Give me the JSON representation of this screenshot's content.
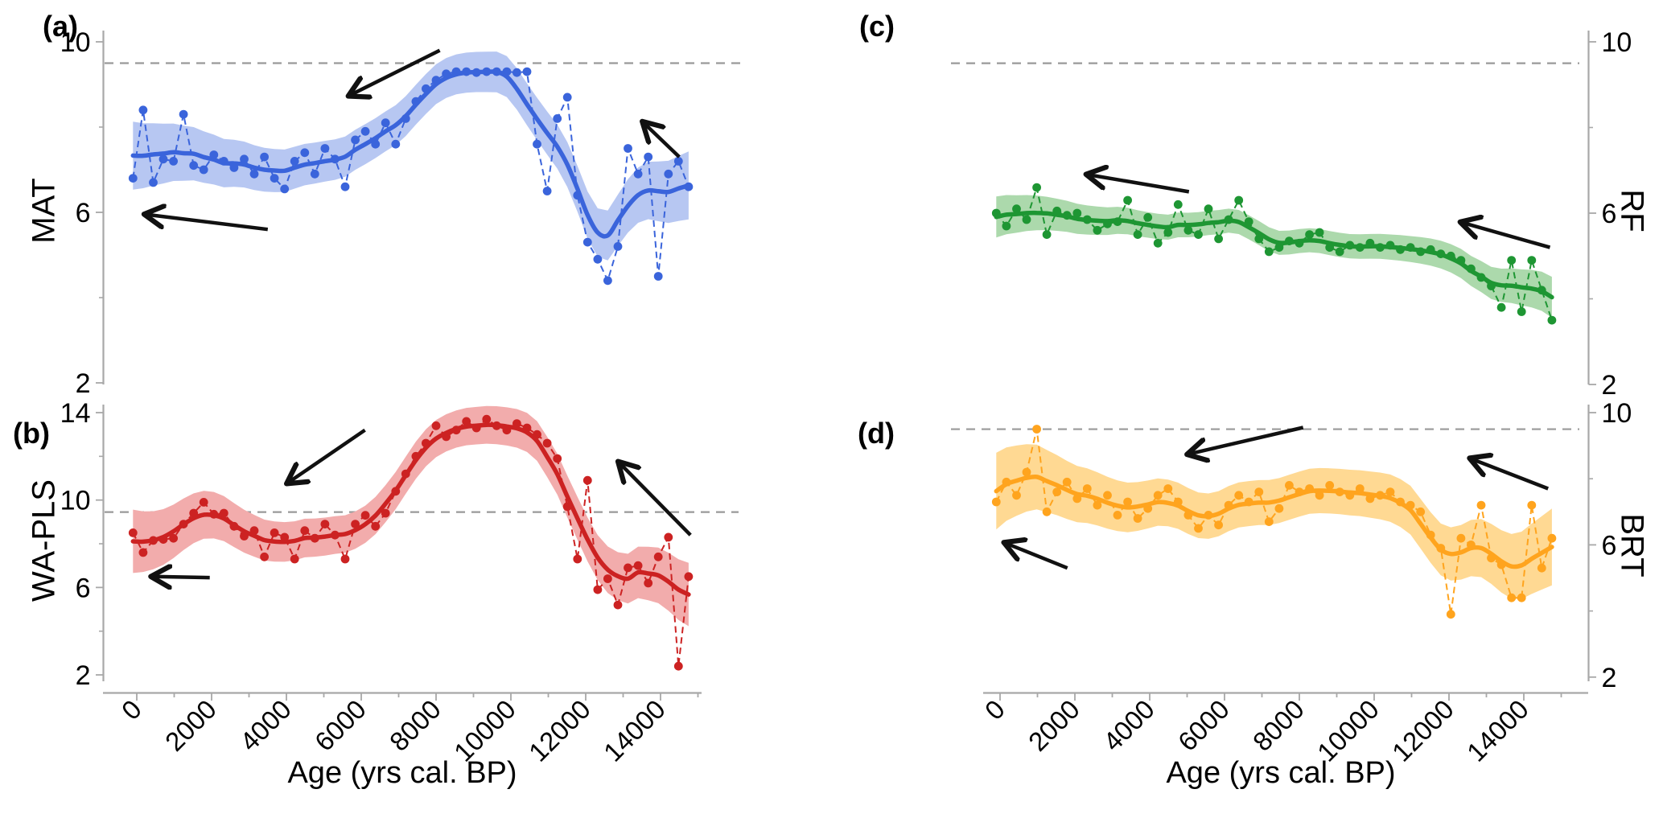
{
  "chart_data": {
    "type": "line",
    "description": "Four-panel pollen-based temperature reconstructions versus age, each with raw sample points, thin dashed connector line, thick smoothed trend line, shaded uncertainty band, gray dashed modern reference line and black trend arrows.",
    "xlabel": "Age (yrs cal. BP)",
    "x_axis": {
      "major_ticks": [
        0,
        2000,
        4000,
        6000,
        8000,
        10000,
        12000,
        14000
      ],
      "minor_step": 1000,
      "max_tick": 15000,
      "range": [
        -500,
        15500
      ],
      "tick_label_rotation_deg": -45
    },
    "ages": [
      -100,
      170,
      440,
      710,
      980,
      1250,
      1520,
      1790,
      2060,
      2330,
      2600,
      2870,
      3140,
      3410,
      3680,
      3950,
      4220,
      4490,
      4760,
      5030,
      5300,
      5570,
      5840,
      6110,
      6380,
      6650,
      6920,
      7190,
      7460,
      7730,
      8000,
      8270,
      8540,
      8810,
      9080,
      9350,
      9620,
      9890,
      10160,
      10430,
      10700,
      10970,
      11240,
      11510,
      11780,
      12050,
      12320,
      12590,
      12860,
      13130,
      13400,
      13670,
      13940,
      14210,
      14480,
      14750
    ],
    "panels": [
      {
        "id": "a",
        "letter": "(a)",
        "y_axis": {
          "label": "MAT",
          "side": "left",
          "ticks": [
            10,
            6,
            2
          ],
          "minor_ticks": [
            8,
            4
          ],
          "range": [
            2,
            10.2
          ]
        },
        "color": "#3A64DB",
        "band_color": "#B7C7F2",
        "reference_value": 9.5,
        "band_halfwidth": 0.55,
        "values": [
          6.8,
          8.4,
          6.7,
          7.25,
          7.2,
          8.3,
          7.1,
          7.0,
          7.35,
          7.2,
          7.05,
          7.25,
          6.9,
          7.3,
          6.8,
          6.55,
          7.2,
          7.4,
          6.9,
          7.5,
          7.25,
          6.6,
          7.7,
          7.9,
          7.6,
          8.1,
          7.6,
          8.2,
          8.6,
          8.9,
          9.1,
          9.25,
          9.3,
          9.3,
          9.28,
          9.3,
          9.3,
          9.3,
          9.28,
          9.3,
          7.6,
          6.5,
          8.2,
          8.7,
          6.4,
          5.3,
          4.9,
          4.4,
          5.2,
          7.5,
          6.9,
          7.3,
          4.5,
          6.9,
          7.2,
          6.6
        ],
        "arrows": [
          {
            "from": [
              8100,
              9.8
            ],
            "to": [
              5700,
              8.75
            ]
          },
          {
            "from": [
              3500,
              5.6
            ],
            "to": [
              250,
              5.95
            ]
          },
          {
            "from": [
              14500,
              7.3
            ],
            "to": [
              13550,
              8.1
            ]
          }
        ]
      },
      {
        "id": "b",
        "letter": "(b)",
        "y_axis": {
          "label": "WA-PLS",
          "side": "left",
          "ticks": [
            14,
            10,
            6,
            2
          ],
          "minor_ticks": [
            12,
            8,
            4
          ],
          "range": [
            1.8,
            14.3
          ]
        },
        "color": "#CC2222",
        "band_color": "#F2ACAC",
        "reference_value": 9.45,
        "band_halfwidth": 1.0,
        "values": [
          8.5,
          7.6,
          8.15,
          8.2,
          8.25,
          8.9,
          9.4,
          9.9,
          9.35,
          9.4,
          8.8,
          8.35,
          8.6,
          7.4,
          8.5,
          8.3,
          7.3,
          8.6,
          8.25,
          8.9,
          8.4,
          7.3,
          8.9,
          9.3,
          8.8,
          9.4,
          10.4,
          11.2,
          12.0,
          12.6,
          13.4,
          12.9,
          13.2,
          13.6,
          13.3,
          13.7,
          13.4,
          13.2,
          13.5,
          13.3,
          13.0,
          12.6,
          11.9,
          9.7,
          7.3,
          10.9,
          5.9,
          6.4,
          5.2,
          6.9,
          7.0,
          6.2,
          7.4,
          8.3,
          2.4,
          6.5
        ],
        "arrows": [
          {
            "from": [
              6100,
              13.2
            ],
            "to": [
              4050,
              10.8
            ]
          },
          {
            "from": [
              1950,
              6.45
            ],
            "to": [
              430,
              6.5
            ]
          },
          {
            "from": [
              14800,
              8.4
            ],
            "to": [
              12900,
              11.7
            ]
          }
        ]
      },
      {
        "id": "c",
        "letter": "(c)",
        "y_axis": {
          "label": "RF",
          "side": "right",
          "ticks": [
            10,
            6,
            2
          ],
          "minor_ticks": [
            8,
            4
          ],
          "range": [
            2,
            10.2
          ]
        },
        "color": "#1E9633",
        "band_color": "#ACD9AC",
        "reference_value": 9.5,
        "band_halfwidth": 0.33,
        "values": [
          6.0,
          5.7,
          6.1,
          5.85,
          6.6,
          5.5,
          6.05,
          5.95,
          6.0,
          5.85,
          5.6,
          5.75,
          5.8,
          6.3,
          5.5,
          5.9,
          5.3,
          5.55,
          6.2,
          5.6,
          5.5,
          6.1,
          5.4,
          5.85,
          6.3,
          5.8,
          5.4,
          5.1,
          5.2,
          5.35,
          5.3,
          5.5,
          5.55,
          5.2,
          5.1,
          5.25,
          5.2,
          5.3,
          5.2,
          5.25,
          5.15,
          5.2,
          5.1,
          5.15,
          5.05,
          5.0,
          4.9,
          4.7,
          4.5,
          4.3,
          3.8,
          4.9,
          3.7,
          4.9,
          4.2,
          3.5
        ],
        "arrows": [
          {
            "from": [
              5050,
              6.5
            ],
            "to": [
              2350,
              6.9
            ]
          },
          {
            "from": [
              14700,
              5.2
            ],
            "to": [
              12350,
              5.78
            ]
          }
        ]
      },
      {
        "id": "d",
        "letter": "(d)",
        "y_axis": {
          "label": "BRT",
          "side": "right",
          "ticks": [
            10,
            6,
            2
          ],
          "minor_ticks": [
            8,
            4
          ],
          "range": [
            1.95,
            10.2
          ]
        },
        "color": "#FFA41E",
        "band_color": "#FFD993",
        "reference_value": 9.5,
        "band_halfwidth": 0.8,
        "values": [
          7.3,
          7.9,
          7.5,
          8.2,
          9.5,
          7.0,
          7.6,
          7.9,
          7.4,
          7.7,
          7.2,
          7.5,
          6.9,
          7.3,
          6.8,
          7.1,
          7.5,
          7.7,
          7.3,
          6.9,
          6.5,
          6.9,
          6.6,
          7.2,
          7.5,
          7.3,
          7.6,
          6.7,
          7.1,
          7.8,
          7.6,
          7.7,
          7.5,
          7.8,
          7.6,
          7.5,
          7.7,
          7.4,
          7.5,
          7.6,
          7.3,
          7.2,
          7.0,
          6.3,
          5.9,
          3.9,
          6.2,
          6.0,
          7.2,
          5.6,
          5.4,
          4.4,
          4.4,
          7.2,
          5.3,
          6.2
        ],
        "arrows": [
          {
            "from": [
              8100,
              9.55
            ],
            "to": [
              5050,
              8.75
            ]
          },
          {
            "from": [
              1800,
              5.3
            ],
            "to": [
              150,
              6.05
            ]
          },
          {
            "from": [
              14650,
              7.7
            ],
            "to": [
              12600,
              8.6
            ]
          }
        ]
      }
    ],
    "style_colors": {
      "reference_line": "#999999",
      "axis_line": "#a8a8a8",
      "arrow": "#111111",
      "text": "#000000"
    }
  }
}
